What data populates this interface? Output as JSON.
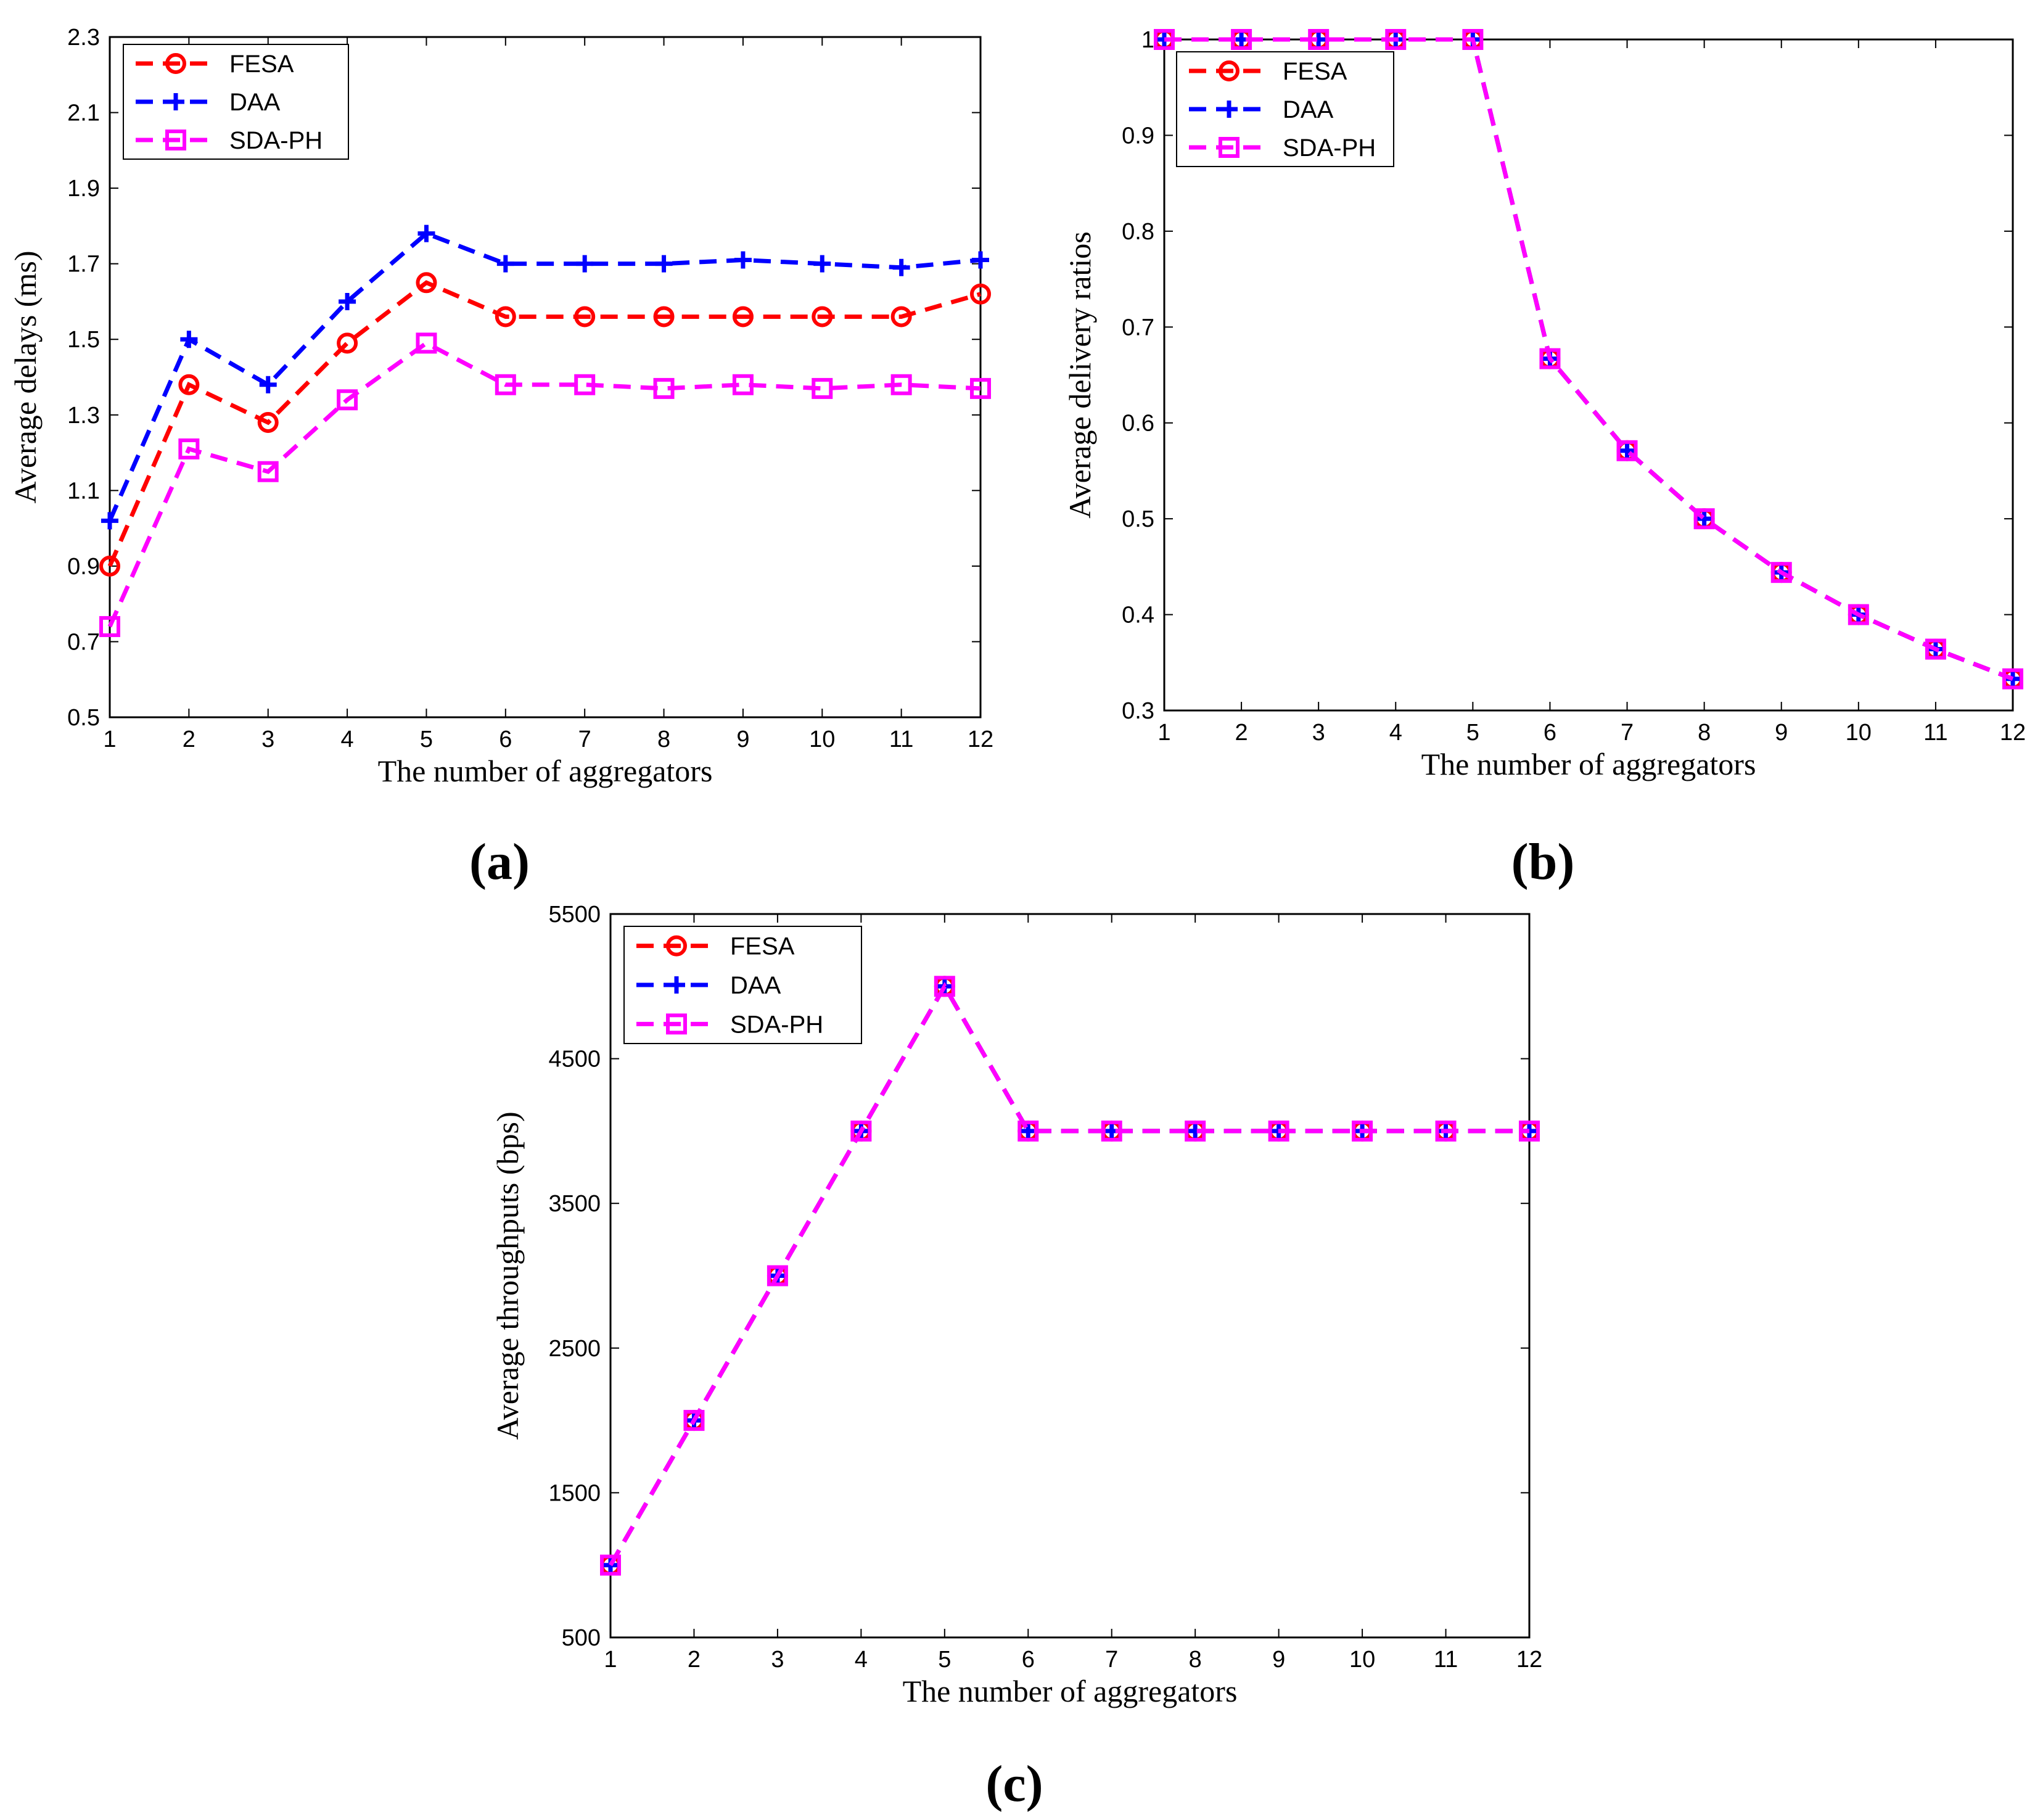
{
  "chart_data": [
    {
      "type": "line",
      "panel_label": "a",
      "xlabel": "The number of aggregators",
      "ylabel": "Average delays (ms)",
      "x": [
        1,
        2,
        3,
        4,
        5,
        6,
        7,
        8,
        9,
        10,
        11,
        12
      ],
      "xlim": [
        1,
        12
      ],
      "ylim": [
        0.5,
        2.3
      ],
      "yticks": [
        0.5,
        0.7,
        0.9,
        1.1,
        1.3,
        1.5,
        1.7,
        1.9,
        2.1,
        2.3
      ],
      "ytick_labels": [
        "0.5",
        "0.7",
        "0.9",
        "1.1",
        "1.3",
        "1.5",
        "1.7",
        "1.9",
        "2.1",
        "2.3"
      ],
      "legend_position": "top-left",
      "grid": false,
      "series": [
        {
          "name": "FESA",
          "marker": "circle",
          "color": "#ff0000",
          "values": [
            0.9,
            1.38,
            1.28,
            1.49,
            1.65,
            1.56,
            1.56,
            1.56,
            1.56,
            1.56,
            1.56,
            1.62
          ]
        },
        {
          "name": "DAA",
          "marker": "plus",
          "color": "#0000ff",
          "values": [
            1.02,
            1.5,
            1.38,
            1.6,
            1.78,
            1.7,
            1.7,
            1.7,
            1.71,
            1.7,
            1.69,
            1.71
          ]
        },
        {
          "name": "SDA-PH",
          "marker": "square",
          "color": "#ff00ff",
          "values": [
            0.74,
            1.21,
            1.15,
            1.34,
            1.49,
            1.38,
            1.38,
            1.37,
            1.38,
            1.37,
            1.38,
            1.37
          ]
        }
      ]
    },
    {
      "type": "line",
      "panel_label": "b",
      "xlabel": "The number of aggregators",
      "ylabel": "Average delivery ratios",
      "x": [
        1,
        2,
        3,
        4,
        5,
        6,
        7,
        8,
        9,
        10,
        11,
        12
      ],
      "xlim": [
        1,
        12
      ],
      "ylim": [
        0.3,
        1.0
      ],
      "yticks": [
        0.3,
        0.4,
        0.5,
        0.6,
        0.7,
        0.8,
        0.9,
        1.0
      ],
      "ytick_labels": [
        "0.3",
        "0.4",
        "0.5",
        "0.6",
        "0.7",
        "0.8",
        "0.9",
        "1"
      ],
      "legend_position": "top-left",
      "grid": false,
      "series": [
        {
          "name": "FESA",
          "marker": "circle",
          "color": "#ff0000",
          "values": [
            1,
            1,
            1,
            1,
            1,
            0.667,
            0.571,
            0.5,
            0.444,
            0.4,
            0.364,
            0.333
          ]
        },
        {
          "name": "DAA",
          "marker": "plus",
          "color": "#0000ff",
          "values": [
            1,
            1,
            1,
            1,
            1,
            0.667,
            0.571,
            0.5,
            0.444,
            0.4,
            0.364,
            0.333
          ]
        },
        {
          "name": "SDA-PH",
          "marker": "square",
          "color": "#ff00ff",
          "values": [
            1,
            1,
            1,
            1,
            1,
            0.667,
            0.571,
            0.5,
            0.444,
            0.4,
            0.364,
            0.333
          ]
        }
      ]
    },
    {
      "type": "line",
      "panel_label": "c",
      "xlabel": "The number of aggregators",
      "ylabel": "Average throughputs (bps)",
      "x": [
        1,
        2,
        3,
        4,
        5,
        6,
        7,
        8,
        9,
        10,
        11,
        12
      ],
      "xlim": [
        1,
        12
      ],
      "ylim": [
        500,
        5500
      ],
      "yticks": [
        500,
        1500,
        2500,
        3500,
        4500,
        5500
      ],
      "ytick_labels": [
        "500",
        "1500",
        "2500",
        "3500",
        "4500",
        "5500"
      ],
      "legend_position": "top-left",
      "grid": false,
      "series": [
        {
          "name": "FESA",
          "marker": "circle",
          "color": "#ff0000",
          "values": [
            1000,
            2000,
            3000,
            4000,
            5000,
            4000,
            4000,
            4000,
            4000,
            4000,
            4000,
            4000
          ]
        },
        {
          "name": "DAA",
          "marker": "plus",
          "color": "#0000ff",
          "values": [
            1000,
            2000,
            3000,
            4000,
            5000,
            4000,
            4000,
            4000,
            4000,
            4000,
            4000,
            4000
          ]
        },
        {
          "name": "SDA-PH",
          "marker": "square",
          "color": "#ff00ff",
          "values": [
            1000,
            2000,
            3000,
            4000,
            5000,
            4000,
            4000,
            4000,
            4000,
            4000,
            4000,
            4000
          ]
        }
      ]
    }
  ]
}
